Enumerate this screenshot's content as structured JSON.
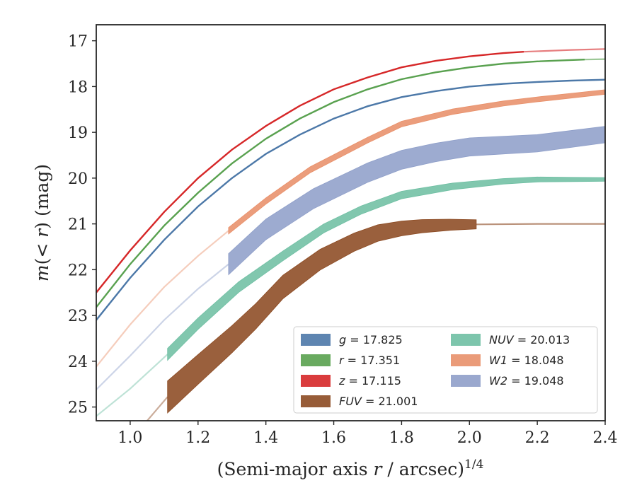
{
  "chart_data": {
    "type": "line",
    "xlabel": "(Semi-major axis r / arcsec)^1/4",
    "ylabel": "m(< r) (mag)",
    "xlim": [
      0.9,
      2.4
    ],
    "ylim": [
      25.3,
      16.65
    ],
    "y_inverted": true,
    "x_ticks": [
      1.0,
      1.2,
      1.4,
      1.6,
      1.8,
      2.0,
      2.2,
      2.4
    ],
    "x_tick_labels": [
      "1.0",
      "1.2",
      "1.4",
      "1.6",
      "1.8",
      "2.0",
      "2.2",
      "2.4"
    ],
    "y_ticks": [
      17,
      18,
      19,
      20,
      21,
      22,
      23,
      24,
      25
    ],
    "y_tick_labels": [
      "17",
      "18",
      "19",
      "20",
      "21",
      "22",
      "23",
      "24",
      "25"
    ],
    "grid": false,
    "legend_position": "lower-right",
    "series": [
      {
        "name": "g",
        "legend_label": "= 17.825",
        "color": "#4c78a8",
        "points": [
          [
            0.9,
            23.1
          ],
          [
            1.0,
            22.18
          ],
          [
            1.1,
            21.35
          ],
          [
            1.2,
            20.62
          ],
          [
            1.3,
            20.0
          ],
          [
            1.4,
            19.47
          ],
          [
            1.5,
            19.05
          ],
          [
            1.6,
            18.7
          ],
          [
            1.7,
            18.43
          ],
          [
            1.8,
            18.23
          ],
          [
            1.9,
            18.1
          ],
          [
            2.0,
            18.0
          ],
          [
            2.1,
            17.94
          ],
          [
            2.2,
            17.9
          ],
          [
            2.3,
            17.87
          ],
          [
            2.4,
            17.85
          ]
        ],
        "faded_from_x": null,
        "band": false
      },
      {
        "name": "r",
        "legend_label": "= 17.351",
        "color": "#59a14f",
        "points": [
          [
            0.9,
            22.82
          ],
          [
            1.0,
            21.88
          ],
          [
            1.1,
            21.04
          ],
          [
            1.2,
            20.32
          ],
          [
            1.3,
            19.68
          ],
          [
            1.4,
            19.14
          ],
          [
            1.5,
            18.7
          ],
          [
            1.6,
            18.34
          ],
          [
            1.7,
            18.06
          ],
          [
            1.8,
            17.84
          ],
          [
            1.9,
            17.69
          ],
          [
            2.0,
            17.58
          ],
          [
            2.1,
            17.5
          ],
          [
            2.2,
            17.45
          ],
          [
            2.34,
            17.41
          ],
          [
            2.4,
            17.4
          ]
        ],
        "faded_from_x": 2.34,
        "band": false
      },
      {
        "name": "z",
        "legend_label": "= 17.115",
        "color": "#d62728",
        "points": [
          [
            0.9,
            22.5
          ],
          [
            1.0,
            21.58
          ],
          [
            1.1,
            20.74
          ],
          [
            1.2,
            20.0
          ],
          [
            1.3,
            19.38
          ],
          [
            1.4,
            18.86
          ],
          [
            1.5,
            18.42
          ],
          [
            1.6,
            18.06
          ],
          [
            1.7,
            17.8
          ],
          [
            1.8,
            17.58
          ],
          [
            1.9,
            17.44
          ],
          [
            2.0,
            17.34
          ],
          [
            2.1,
            17.27
          ],
          [
            2.16,
            17.24
          ],
          [
            2.3,
            17.2
          ],
          [
            2.4,
            17.18
          ]
        ],
        "faded_from_x": 2.16,
        "band": false
      },
      {
        "name": "FUV",
        "legend_label": "= 21.001",
        "color": "#8c4a22",
        "points": [
          [
            1.05,
            25.3
          ],
          [
            1.11,
            24.78
          ],
          [
            1.2,
            24.18
          ],
          [
            1.3,
            23.52
          ],
          [
            1.37,
            23.02
          ],
          [
            1.45,
            22.38
          ],
          [
            1.56,
            21.78
          ],
          [
            1.66,
            21.4
          ],
          [
            1.73,
            21.2
          ],
          [
            1.8,
            21.1
          ],
          [
            1.86,
            21.05
          ],
          [
            1.94,
            21.02
          ],
          [
            2.02,
            21.01
          ],
          [
            2.2,
            21.0
          ],
          [
            2.4,
            21.0
          ]
        ],
        "faded_before_x": 1.11,
        "faded_from_x": 2.02,
        "band": true,
        "band_half_width_start": 0.35,
        "band_half_width_end": 0.1
      },
      {
        "name": "NUV",
        "legend_label": "= 20.013",
        "color": "#6fbfa3",
        "points": [
          [
            0.9,
            25.2
          ],
          [
            1.0,
            24.6
          ],
          [
            1.11,
            23.85
          ],
          [
            1.2,
            23.18
          ],
          [
            1.32,
            22.38
          ],
          [
            1.45,
            21.7
          ],
          [
            1.57,
            21.1
          ],
          [
            1.68,
            20.7
          ],
          [
            1.8,
            20.37
          ],
          [
            1.95,
            20.18
          ],
          [
            2.1,
            20.07
          ],
          [
            2.2,
            20.03
          ],
          [
            2.3,
            20.03
          ],
          [
            2.4,
            20.03
          ]
        ],
        "faded_before_x": 1.11,
        "faded_from_x": null,
        "band": true,
        "band_half_width_start": 0.13,
        "band_half_width_end": 0.04
      },
      {
        "name": "W1",
        "legend_label": "= 18.048",
        "color": "#e8906a",
        "points": [
          [
            0.9,
            24.12
          ],
          [
            1.0,
            23.2
          ],
          [
            1.1,
            22.38
          ],
          [
            1.2,
            21.7
          ],
          [
            1.29,
            21.15
          ],
          [
            1.4,
            20.5
          ],
          [
            1.53,
            19.82
          ],
          [
            1.7,
            19.17
          ],
          [
            1.8,
            18.82
          ],
          [
            1.95,
            18.55
          ],
          [
            2.1,
            18.37
          ],
          [
            2.2,
            18.28
          ],
          [
            2.3,
            18.2
          ],
          [
            2.4,
            18.12
          ]
        ],
        "faded_before_x": 1.29,
        "faded_from_x": null,
        "band": true,
        "band_half_width_start": 0.07,
        "band_half_width_end": 0.05
      },
      {
        "name": "W2",
        "legend_label": "= 19.048",
        "color": "#8f9fc9",
        "points": [
          [
            0.9,
            24.62
          ],
          [
            1.0,
            23.88
          ],
          [
            1.1,
            23.1
          ],
          [
            1.2,
            22.42
          ],
          [
            1.29,
            21.88
          ],
          [
            1.4,
            21.12
          ],
          [
            1.54,
            20.45
          ],
          [
            1.7,
            19.88
          ],
          [
            1.8,
            19.6
          ],
          [
            1.9,
            19.44
          ],
          [
            2.0,
            19.32
          ],
          [
            2.2,
            19.24
          ],
          [
            2.4,
            19.05
          ]
        ],
        "faded_before_x": 1.29,
        "faded_from_x": null,
        "band": true,
        "band_half_width_start": 0.23,
        "band_half_width_end": 0.18
      }
    ]
  }
}
